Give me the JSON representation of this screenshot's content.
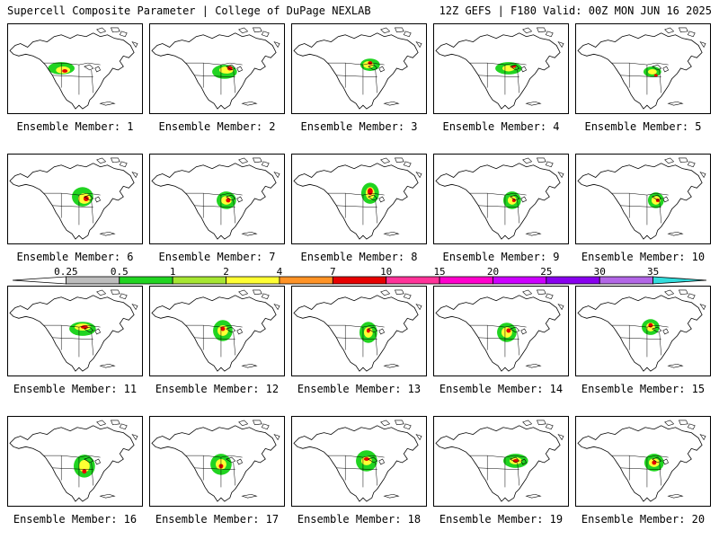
{
  "header": {
    "left": "Supercell Composite Parameter | College of DuPage NEXLAB",
    "right": "12Z GEFS | F180 Valid: 00Z MON JUN 16 2025"
  },
  "colorbar": {
    "ticks": [
      "0.25",
      "0.5",
      "1",
      "2",
      "4",
      "7",
      "10",
      "15",
      "20",
      "25",
      "30",
      "35"
    ],
    "colors": [
      "#ffffff",
      "#bdbdbd",
      "#21d421",
      "#a6e632",
      "#ffff33",
      "#ff9326",
      "#e60000",
      "#ff3399",
      "#ff00cc",
      "#cc00ff",
      "#8800ee",
      "#b266e6",
      "#33dddd"
    ]
  },
  "members": [
    {
      "label": "Ensemble Member: 1"
    },
    {
      "label": "Ensemble Member: 2"
    },
    {
      "label": "Ensemble Member: 3"
    },
    {
      "label": "Ensemble Member: 4"
    },
    {
      "label": "Ensemble Member: 5"
    },
    {
      "label": "Ensemble Member: 6"
    },
    {
      "label": "Ensemble Member: 7"
    },
    {
      "label": "Ensemble Member: 8"
    },
    {
      "label": "Ensemble Member: 9"
    },
    {
      "label": "Ensemble Member: 10"
    },
    {
      "label": "Ensemble Member: 11"
    },
    {
      "label": "Ensemble Member: 12"
    },
    {
      "label": "Ensemble Member: 13"
    },
    {
      "label": "Ensemble Member: 14"
    },
    {
      "label": "Ensemble Member: 15"
    },
    {
      "label": "Ensemble Member: 16"
    },
    {
      "label": "Ensemble Member: 17"
    },
    {
      "label": "Ensemble Member: 18"
    },
    {
      "label": "Ensemble Member: 19"
    },
    {
      "label": "Ensemble Member: 20"
    }
  ]
}
